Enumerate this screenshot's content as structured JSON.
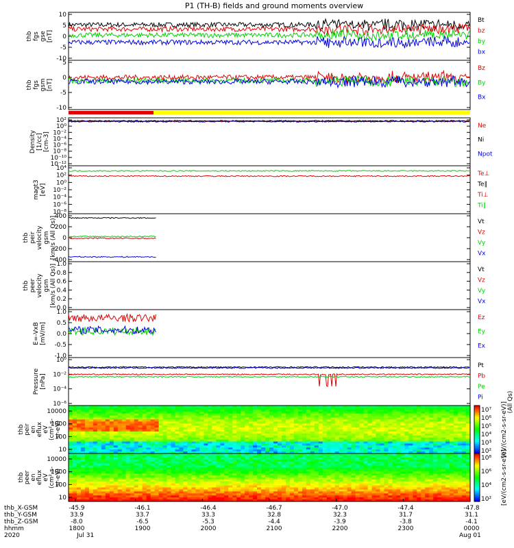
{
  "title": "P1 (TH-B) fields and ground moments overview",
  "colors": {
    "black": "#000000",
    "red": "#e00000",
    "green": "#00d000",
    "blue": "#0000e0",
    "yellow": "#ffff00"
  },
  "chart_data": {
    "type": "line",
    "time_ticks": [
      "1800",
      "1900",
      "2000",
      "2100",
      "2200",
      "2300",
      "0000"
    ],
    "date_labels": {
      "year": "2020",
      "start": "Jul 31",
      "end": "Aug 01"
    },
    "ephemeris": [
      {
        "name": "thb_X-GSM",
        "values": [
          "-45.9",
          "-46.1",
          "-46.4",
          "-46.7",
          "-47.0",
          "-47.4",
          "-47.8"
        ]
      },
      {
        "name": "thb_Y-GSM",
        "values": [
          "33.9",
          "33.7",
          "33.3",
          "32.8",
          "32.3",
          "31.7",
          "31.1"
        ]
      },
      {
        "name": "thb_Z-GSM",
        "values": [
          "-8.0",
          "-6.5",
          "-5.3",
          "-4.4",
          "-3.9",
          "-3.8",
          "-4.1"
        ]
      },
      {
        "name": "hhmm",
        "values": [
          "1800",
          "1900",
          "2000",
          "2100",
          "2200",
          "2300",
          "0000"
        ]
      }
    ],
    "panels": [
      {
        "id": "fgs_gse",
        "ylabel": [
          "thb",
          "fgs",
          "gse",
          "[nT]"
        ],
        "yticks": [
          "10",
          "5",
          "0",
          "-5",
          "-10"
        ],
        "ylim": [
          -10,
          10
        ],
        "legend": [
          "Bt",
          "bz",
          "by",
          "bx"
        ],
        "series": [
          {
            "name": "Bt",
            "color": "black",
            "level": 4.8
          },
          {
            "name": "bz",
            "color": "red",
            "level": 3
          },
          {
            "name": "by",
            "color": "green",
            "level": 0.5
          },
          {
            "name": "bx",
            "color": "blue",
            "level": -2.5
          }
        ]
      },
      {
        "id": "fgs_gsm",
        "ylabel": [
          "thb",
          "fgs",
          "gsm",
          "[nT]"
        ],
        "yticks": [
          "5",
          "0",
          "-5",
          "-10"
        ],
        "ylim": [
          -13,
          10
        ],
        "legend": [
          "Bz",
          "By",
          "Bx"
        ],
        "series": [
          {
            "name": "Bz",
            "color": "red",
            "level": 2
          },
          {
            "name": "By",
            "color": "green",
            "level": 0.5
          },
          {
            "name": "Bx",
            "color": "blue",
            "level": 0
          }
        ]
      },
      {
        "id": "density",
        "ylabel": [
          "Density",
          "[1/cc]",
          "[cm-3]"
        ],
        "yticks": [
          "10²",
          "10⁰",
          "10⁻²",
          "10⁻⁴",
          "10⁻⁶",
          "10⁻⁸",
          "10⁻¹⁰",
          "10⁻¹²"
        ],
        "ylim": [
          -12,
          2
        ],
        "legend": [
          "Ne",
          "Ni",
          "Npot"
        ],
        "series": [
          {
            "name": "Ne",
            "color": "red",
            "level": 1
          },
          {
            "name": "Ni",
            "color": "black",
            "level": 1.1
          },
          {
            "name": "Npot",
            "color": "blue",
            "level": 0.9
          }
        ]
      },
      {
        "id": "temperature",
        "ylabel": [
          "magt3",
          "[eV]"
        ],
        "yticks": [
          "10⁴",
          "10²",
          "10⁰",
          "10⁻²",
          "10⁻⁴",
          "10⁻⁶",
          "10⁻⁸"
        ],
        "ylim": [
          -8,
          5
        ],
        "legend": [
          "Te⊥",
          "Te∥",
          "Ti⊥",
          "Ti∥"
        ],
        "series": [
          {
            "name": "Ti",
            "color": "green",
            "level": 3.6
          },
          {
            "name": "Te",
            "color": "red",
            "level": 2.2
          }
        ]
      },
      {
        "id": "peir_velocity",
        "ylabel": [
          "thb",
          "peir",
          "velocity",
          "gsm",
          "[km/s (All Qs)]"
        ],
        "yticks": [
          "400",
          "200",
          "0",
          "-200",
          "-400"
        ],
        "ylim": [
          -400,
          400
        ],
        "legend": [
          "Vt",
          "Vz",
          "Vy",
          "Vx"
        ],
        "series": [
          {
            "name": "Vt",
            "color": "black",
            "level": 330
          },
          {
            "name": "Vy",
            "color": "green",
            "level": 20
          },
          {
            "name": "Vz",
            "color": "red",
            "level": -10
          },
          {
            "name": "Vx",
            "color": "blue",
            "level": -320
          }
        ]
      },
      {
        "id": "peer_velocity",
        "ylabel": [
          "thb",
          "peer",
          "velocity",
          "gsm",
          "[km/s (All Qs)]"
        ],
        "yticks": [
          "1.0",
          "0.8",
          "0.6",
          "0.4",
          "0.2",
          "0.0"
        ],
        "ylim": [
          0,
          1
        ],
        "legend": [
          "Vt",
          "Vz",
          "Vy",
          "Vx"
        ],
        "series": []
      },
      {
        "id": "efield",
        "ylabel": [
          "E=-VxB",
          "[mV/m]"
        ],
        "yticks": [
          "1.0",
          "0.5",
          "0.0",
          "-0.5",
          "-1.0"
        ],
        "ylim": [
          -1,
          1
        ],
        "legend": [
          "Ez",
          "Ey",
          "Ex"
        ],
        "series": [
          {
            "name": "Ez",
            "color": "red",
            "level": 0.65
          },
          {
            "name": "Ey",
            "color": "green",
            "level": 0.1
          },
          {
            "name": "Ex",
            "color": "blue",
            "level": 0.15
          }
        ]
      },
      {
        "id": "pressure",
        "ylabel": [
          "Pressure",
          "[nPa]"
        ],
        "yticks": [
          "10⁰",
          "10⁻²",
          "10⁻⁴",
          "10⁻⁶"
        ],
        "ylim": [
          -6,
          0
        ],
        "legend": [
          "Pt",
          "Pb",
          "Pe",
          "Pi"
        ],
        "series": [
          {
            "name": "Pt",
            "color": "black",
            "level": -1.2
          },
          {
            "name": "Pi",
            "color": "blue",
            "level": -1.3
          },
          {
            "name": "Pb",
            "color": "red",
            "level": -2.1
          },
          {
            "name": "Pe",
            "color": "green",
            "level": -2.4
          }
        ]
      }
    ],
    "spectrograms": [
      {
        "id": "peir_eflux",
        "ylabel": [
          "thb",
          "peir",
          "en",
          "eflux",
          "eV",
          "(cm²-s-",
          "sr-eV)"
        ],
        "yticks": [
          "10000",
          "1000",
          "100",
          "10"
        ],
        "colorbar_ticks": [
          "10⁷",
          "10⁶",
          "10⁵",
          "10⁴",
          "10³",
          "10²"
        ],
        "colorbar_label": "[eV/(cm2-s-sr-eV)]",
        "colorbar_label2": "[eV/(cm2-s-sr-eV)] (All Qs)"
      },
      {
        "id": "peer_eflux",
        "ylabel": [
          "thb",
          "peer",
          "en",
          "eflux",
          "eV",
          "(cm²-s-",
          "sr-eV)"
        ],
        "yticks": [
          "10000",
          "1000",
          "100",
          "10"
        ],
        "colorbar_ticks": [
          "10⁸",
          "10⁶",
          "10⁴",
          "10²"
        ],
        "colorbar_label": "[eV/(cm2-s-sr-eV)]"
      }
    ]
  }
}
